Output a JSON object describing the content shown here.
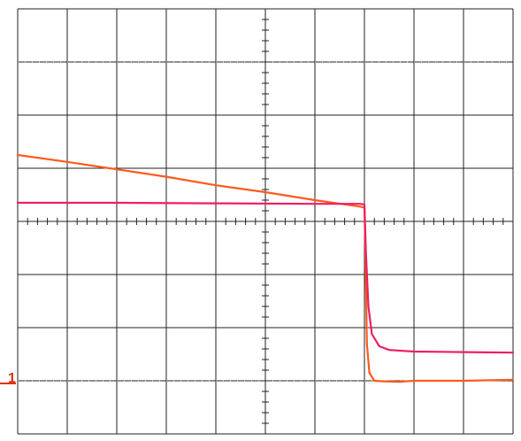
{
  "chart_data": {
    "type": "line",
    "title": "",
    "xlabel": "",
    "ylabel": "",
    "grid": true,
    "xlim": [
      -5,
      5
    ],
    "ylim": [
      -4,
      4
    ],
    "divisions": {
      "x": 10,
      "y": 8
    },
    "ground_marker": {
      "label": "1",
      "level": -3.05,
      "color": "#e03010"
    },
    "series": [
      {
        "color": "#ff5a1e",
        "x": [
          -5.0,
          -4.0,
          -3.0,
          -2.0,
          -1.0,
          0.0,
          1.0,
          1.9,
          2.0,
          2.02,
          2.05,
          2.1,
          2.2,
          2.4,
          2.7,
          3.0,
          4.0,
          5.0
        ],
        "y": [
          1.25,
          1.12,
          0.98,
          0.84,
          0.68,
          0.55,
          0.4,
          0.28,
          0.26,
          -0.6,
          -2.3,
          -2.85,
          -3.0,
          -3.01,
          -3.02,
          -3.0,
          -3.0,
          -2.98
        ]
      },
      {
        "color": "#ee1e64",
        "x": [
          -5.0,
          -3.0,
          -1.0,
          1.0,
          1.9,
          2.0,
          2.03,
          2.08,
          2.15,
          2.3,
          2.5,
          3.0,
          4.0,
          5.0
        ],
        "y": [
          0.35,
          0.35,
          0.34,
          0.33,
          0.33,
          0.32,
          -0.6,
          -1.6,
          -2.12,
          -2.35,
          -2.42,
          -2.45,
          -2.46,
          -2.47
        ]
      }
    ]
  }
}
